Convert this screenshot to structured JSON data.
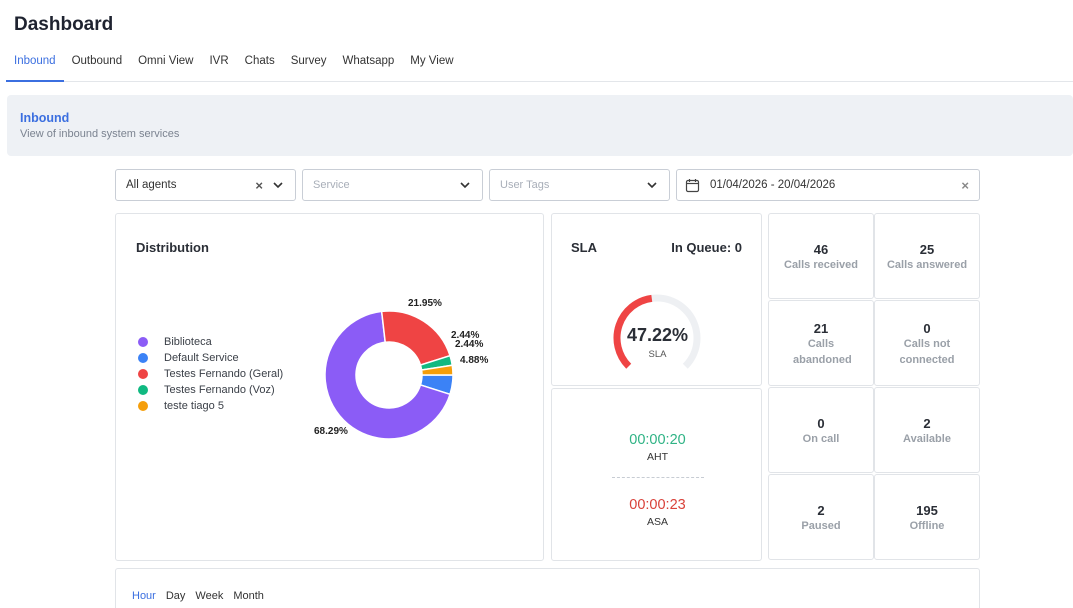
{
  "header": {
    "title": "Dashboard"
  },
  "tabs": [
    {
      "label": "Inbound",
      "active": true
    },
    {
      "label": "Outbound"
    },
    {
      "label": "Omni View"
    },
    {
      "label": "IVR"
    },
    {
      "label": "Chats"
    },
    {
      "label": "Survey"
    },
    {
      "label": "Whatsapp"
    },
    {
      "label": "My View"
    }
  ],
  "banner": {
    "title": "Inbound",
    "subtitle": "View of inbound system services"
  },
  "filters": {
    "agents": "All agents",
    "service_placeholder": "Service",
    "tags_placeholder": "User Tags",
    "date_range": "01/04/2026 - 20/04/2026"
  },
  "distribution": {
    "title": "Distribution",
    "chart_data": {
      "type": "pie",
      "categories": [
        "Biblioteca",
        "Default Service",
        "Testes Fernando (Geral)",
        "Testes Fernando (Voz)",
        "teste tiago 5"
      ],
      "values": [
        68.29,
        4.88,
        21.95,
        2.44,
        2.44
      ],
      "labels": [
        "68.29%",
        "4.88%",
        "21.95%",
        "2.44%",
        "2.44%"
      ],
      "colors": [
        "#8b5cf6",
        "#3b82f6",
        "#ef4444",
        "#10b981",
        "#f59e0b"
      ],
      "legend": "left"
    }
  },
  "sla": {
    "title": "SLA",
    "queue_label": "In Queue: 0",
    "value": 47.22,
    "value_label": "47.22%",
    "sub": "SLA",
    "color": "#ef4444"
  },
  "times": {
    "aht_value": "00:00:20",
    "aht_label": "AHT",
    "asa_value": "00:00:23",
    "asa_label": "ASA"
  },
  "stats": [
    {
      "num": "46",
      "label": "Calls received"
    },
    {
      "num": "25",
      "label": "Calls answered"
    },
    {
      "num": "21",
      "label": "Calls abandoned"
    },
    {
      "num": "0",
      "label": "Calls not connected"
    },
    {
      "num": "0",
      "label": "On call"
    },
    {
      "num": "2",
      "label": "Available"
    },
    {
      "num": "2",
      "label": "Paused"
    },
    {
      "num": "195",
      "label": "Offline"
    }
  ],
  "period_tabs": [
    {
      "label": "Hour",
      "active": true
    },
    {
      "label": "Day"
    },
    {
      "label": "Week"
    },
    {
      "label": "Month"
    }
  ]
}
